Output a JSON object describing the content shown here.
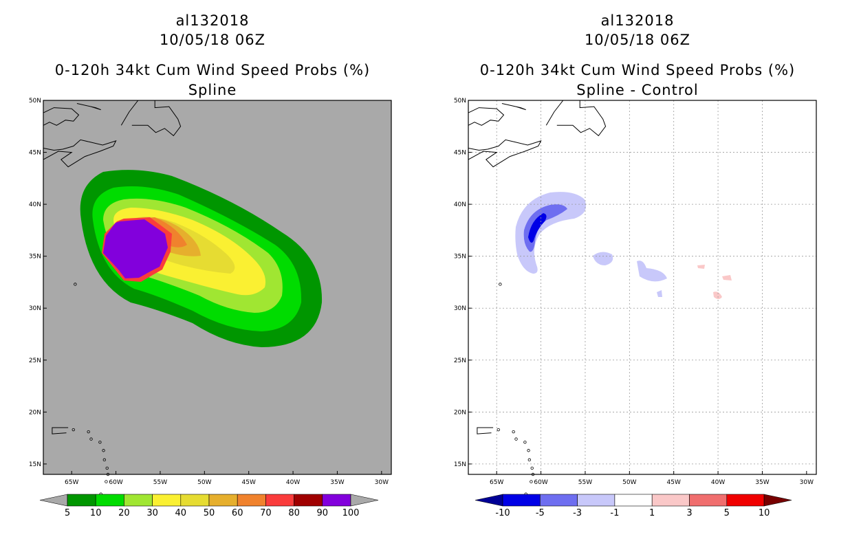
{
  "panels": [
    {
      "storm_id": "al132018",
      "datetime": "10/05/18 06Z",
      "product": "0-120h 34kt Cum Wind Speed Probs (%)",
      "subtitle": "Spline",
      "background": "#a9a9a9",
      "colorbar": {
        "labels": [
          "5",
          "10",
          "20",
          "30",
          "40",
          "50",
          "60",
          "70",
          "80",
          "90",
          "100"
        ],
        "colors": [
          "#009600",
          "#00dc00",
          "#a0e632",
          "#faf032",
          "#e6dc32",
          "#e6af2d",
          "#f0822d",
          "#fa3c3c",
          "#a00000",
          "#8200dc"
        ],
        "under_color": "#a9a9a9",
        "over_color": "#a9a9a9"
      }
    },
    {
      "storm_id": "al132018",
      "datetime": "10/05/18 06Z",
      "product": "0-120h 34kt Cum Wind Speed Probs (%)",
      "subtitle": "Spline - Control",
      "background": "#ffffff",
      "colorbar": {
        "labels": [
          "-10",
          "-5",
          "-3",
          "-1",
          "1",
          "3",
          "5",
          "10"
        ],
        "colors": [
          "#0000e6",
          "#6e6ef0",
          "#c8c8fa",
          "#ffffff",
          "#fac8c8",
          "#f06e6e",
          "#f00000"
        ],
        "under_color": "#000096",
        "over_color": "#780000"
      }
    }
  ],
  "map": {
    "lat_labels": [
      "15N",
      "20N",
      "25N",
      "30N",
      "35N",
      "40N",
      "45N",
      "50N"
    ],
    "lon_labels": [
      "65W",
      "60W",
      "55W",
      "50W",
      "45W",
      "40W",
      "35W",
      "30W"
    ]
  }
}
